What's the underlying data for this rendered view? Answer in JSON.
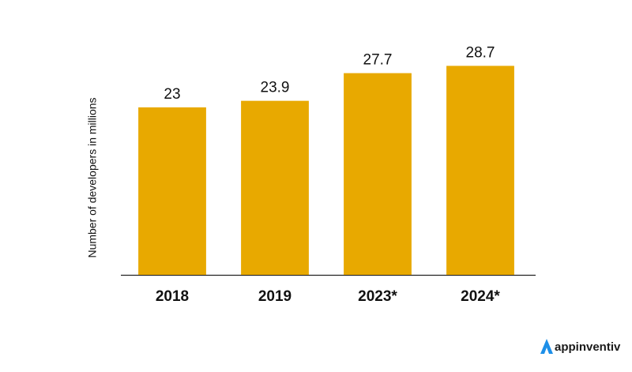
{
  "chart_data": {
    "type": "bar",
    "ylabel": "Number of developers in millions",
    "categories": [
      "2018",
      "2019",
      "2023*",
      "2024*"
    ],
    "values": [
      23,
      23.9,
      27.7,
      28.7
    ],
    "color": "#e8a900",
    "ylim": [
      0,
      30
    ]
  },
  "brand": "appinventiv"
}
